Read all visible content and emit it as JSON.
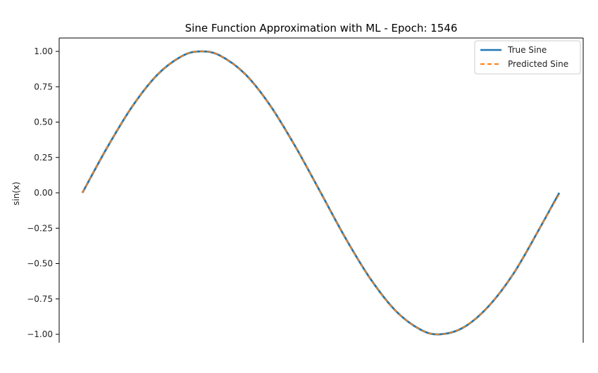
{
  "chart_data": {
    "type": "line",
    "title": "Sine Function Approximation with ML - Epoch: 1546",
    "xlabel": "",
    "ylabel": "sin(x)",
    "xlim": [
      0,
      6.2832
    ],
    "ylim": [
      -1.0,
      1.0
    ],
    "yticks": [
      1.0,
      0.75,
      0.5,
      0.25,
      0.0,
      -0.25,
      -0.5,
      -0.75,
      -1.0
    ],
    "ytick_labels": [
      "1.00",
      "0.75",
      "0.50",
      "0.25",
      "0.00",
      "−0.25",
      "−0.50",
      "−0.75",
      "−1.00"
    ],
    "grid": false,
    "legend_position": "top-right",
    "x": [
      0,
      0.3307,
      0.6614,
      0.9921,
      1.3228,
      1.5708,
      1.8142,
      2.1449,
      2.4756,
      2.8063,
      3.1416,
      3.4677,
      3.7984,
      4.1291,
      4.4598,
      4.7124,
      5.0212,
      5.3519,
      5.6826,
      6.0133,
      6.2832
    ],
    "series": [
      {
        "name": "True Sine",
        "values": [
          0.0,
          0.3247,
          0.6142,
          0.8372,
          0.9694,
          1.0,
          0.9704,
          0.8394,
          0.6168,
          0.3275,
          0.0,
          -0.3211,
          -0.6106,
          -0.8349,
          -0.9681,
          -1.0,
          -0.9514,
          -0.8017,
          -0.5692,
          -0.2619,
          0.0
        ],
        "color": "#1f77b4",
        "style": "solid"
      },
      {
        "name": "Predicted Sine",
        "values": [
          0.0,
          0.3247,
          0.6142,
          0.8372,
          0.9694,
          1.0,
          0.9704,
          0.8394,
          0.6168,
          0.3275,
          0.0,
          -0.3211,
          -0.6106,
          -0.8349,
          -0.9681,
          -1.0,
          -0.9514,
          -0.8017,
          -0.5692,
          -0.2619,
          -0.01
        ],
        "color": "#ff7f0e",
        "style": "dashed"
      }
    ]
  }
}
